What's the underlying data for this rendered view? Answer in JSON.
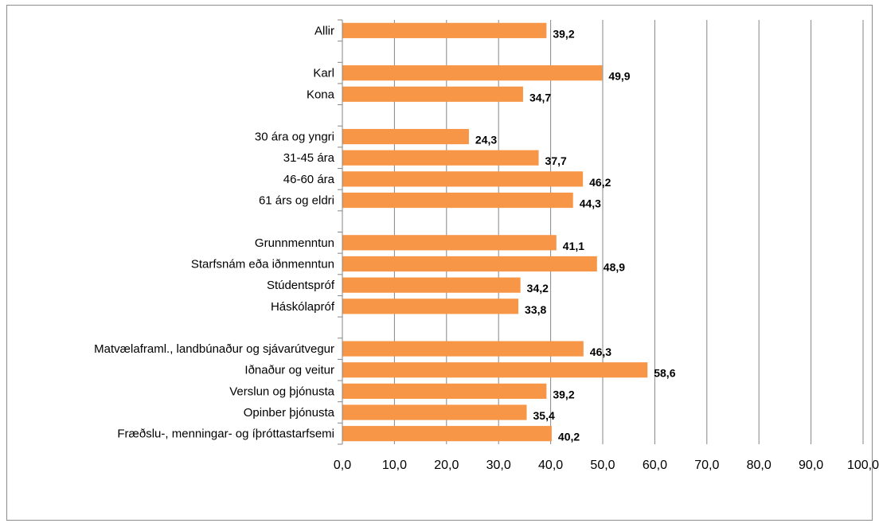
{
  "chart_data": {
    "type": "bar",
    "orientation": "horizontal",
    "categories": [
      "Allir",
      "",
      "Karl",
      "Kona",
      "",
      "30 ára og yngri",
      "31-45 ára",
      "46-60 ára",
      "61 árs og eldri",
      "",
      "Grunnmenntun",
      "Starfsnám eða iðnmenntun",
      "Stúdentspróf",
      "Háskólapróf",
      "",
      "Matvælaframl., landbúnaður og sjávarútvegur",
      "Iðnaður og veitur",
      "Verslun og þjónusta",
      "Opinber þjónusta",
      "Fræðslu-, menningar- og íþróttastarfsemi"
    ],
    "values": [
      39.2,
      null,
      49.9,
      34.7,
      null,
      24.3,
      37.7,
      46.2,
      44.3,
      null,
      41.1,
      48.9,
      34.2,
      33.8,
      null,
      46.3,
      58.6,
      39.2,
      35.4,
      40.2
    ],
    "value_labels": [
      "39,2",
      "",
      "49,9",
      "34,7",
      "",
      "24,3",
      "37,7",
      "46,2",
      "44,3",
      "",
      "41,1",
      "48,9",
      "34,2",
      "33,8",
      "",
      "46,3",
      "58,6",
      "39,2",
      "35,4",
      "40,2"
    ],
    "xlim": [
      0,
      100
    ],
    "xticks": [
      "0,0",
      "10,0",
      "20,0",
      "30,0",
      "40,0",
      "50,0",
      "60,0",
      "70,0",
      "80,0",
      "90,0",
      "100,0"
    ],
    "title": "",
    "xlabel": "",
    "ylabel": "",
    "grid": "vertical",
    "legend": "none",
    "colors": {
      "bar": "#f79646",
      "grid": "#868686",
      "axis": "#868686",
      "frame": "#8c8c8c"
    }
  }
}
